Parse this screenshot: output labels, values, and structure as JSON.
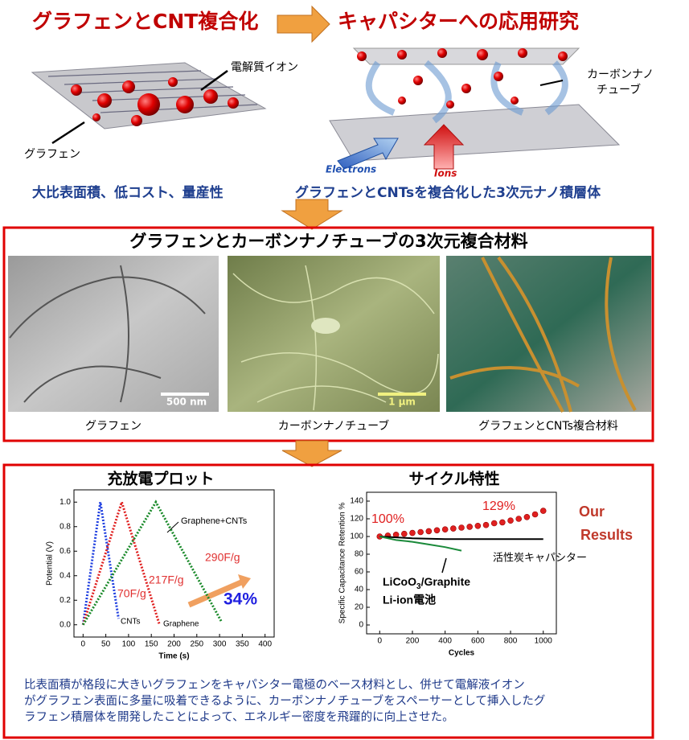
{
  "header": {
    "left_title": "グラフェンとCNT複合化",
    "right_title": "キャパシターへの応用研究"
  },
  "illustration_left": {
    "ion_label": "電解質イオン",
    "graphene_label": "グラフェン",
    "caption": "大比表面積、低コスト、量産性"
  },
  "illustration_right": {
    "cnt_label_1": "カーボンナノ",
    "cnt_label_2": "チューブ",
    "electrons": "Electrons",
    "ions": "Ions",
    "caption": "グラフェンとCNTsを複合化した3次元ナノ積層体"
  },
  "materials": {
    "title": "グラフェンとカーボンナノチューブの3次元複合材料",
    "images": [
      {
        "caption": "グラフェン",
        "scale": "500 nm"
      },
      {
        "caption": "カーボンナノチューブ",
        "scale": "1 μm"
      },
      {
        "caption": "グラフェンとCNTs複合材料"
      }
    ]
  },
  "results": {
    "left_title": "充放電プロット",
    "right_title": "サイクル特性",
    "summary": [
      "比表面積が格段に大きいグラフェンをキャパシター電極のベース材料とし、併せて電解液イオン",
      "がグラフェン表面に多量に吸着できるように、カーボンナノチューブをスペーサーとして挿入したグ",
      "ラフェン積層体を開発したことによって、エネルギー密度を飛躍的に向上させた。"
    ]
  },
  "chart_data": [
    {
      "type": "line",
      "xlabel": "Time (s)",
      "ylabel": "Potential (V)",
      "xlim": [
        -20,
        420
      ],
      "ylim": [
        -0.1,
        1.1
      ],
      "xticks": [
        0,
        50,
        100,
        150,
        200,
        250,
        300,
        350,
        400
      ],
      "yticks": [
        {
          "value": 0,
          "label": "0.0"
        },
        0.2,
        0.4,
        0.6,
        0.8,
        {
          "value": 1,
          "label": "1.0"
        }
      ],
      "series": [
        {
          "color": "#1f3fe0",
          "style": "dotted",
          "x": [
            0,
            38,
            78
          ],
          "values": [
            0,
            1.0,
            0.05
          ]
        },
        {
          "color": "#e02020",
          "style": "dotted",
          "x": [
            0,
            85,
            168
          ],
          "values": [
            0,
            1.0,
            0
          ]
        },
        {
          "color": "#1a8a2a",
          "style": "dotted",
          "x": [
            0,
            160,
            305
          ],
          "values": [
            0,
            1.0,
            0.02
          ]
        }
      ],
      "annotations": [
        {
          "text": "Graphene+CNTs",
          "color": "#000"
        },
        {
          "text": "290F/g",
          "color": "#e03030"
        },
        {
          "text": "217F/g",
          "color": "#e03030"
        },
        {
          "text": "70F/g",
          "color": "#e03030"
        },
        {
          "text": "CNTs",
          "color": "#000"
        },
        {
          "text": "Graphene",
          "color": "#000"
        },
        {
          "text": "34%",
          "color": "#2020e0"
        }
      ]
    },
    {
      "type": "line",
      "xlabel": "Cycles",
      "ylabel": "Specific Capacitance Retention %",
      "xlim": [
        -80,
        1080
      ],
      "ylim": [
        -10,
        150
      ],
      "xticks": [
        0,
        200,
        400,
        600,
        800,
        1000
      ],
      "yticks": [
        0,
        20,
        40,
        60,
        80,
        100,
        120,
        140
      ],
      "series": [
        {
          "color": "#e02020",
          "style": "markers",
          "x": [
            0,
            50,
            100,
            150,
            200,
            250,
            300,
            350,
            400,
            450,
            500,
            550,
            600,
            650,
            700,
            750,
            800,
            850,
            900,
            950,
            1000
          ],
          "values": [
            100,
            101,
            102,
            103,
            104,
            105,
            106,
            107,
            108,
            109,
            110,
            111,
            112,
            113,
            115,
            116,
            118,
            120,
            122,
            125,
            129
          ]
        },
        {
          "color": "#000000",
          "style": "line",
          "x": [
            0,
            200,
            400,
            600,
            800,
            1000
          ],
          "values": [
            100,
            98,
            97,
            97,
            97,
            97
          ]
        },
        {
          "color": "#1a8a3a",
          "style": "line",
          "x": [
            0,
            100,
            200,
            300,
            400,
            500
          ],
          "values": [
            100,
            96,
            94,
            91,
            88,
            84
          ]
        }
      ],
      "annotations": [
        {
          "text": "100%",
          "color": "#e02020"
        },
        {
          "text": "129%",
          "color": "#e02020"
        },
        {
          "text": "Our",
          "color": "#c0392b"
        },
        {
          "text": "Results",
          "color": "#c0392b"
        },
        {
          "text": "活性炭キャパシター",
          "color": "#000"
        },
        {
          "text": "Li-ion電池",
          "color": "#000"
        }
      ],
      "battery_label": {
        "main": "LiCoO",
        "sub": "3",
        "rest": "/Graphite"
      }
    }
  ]
}
